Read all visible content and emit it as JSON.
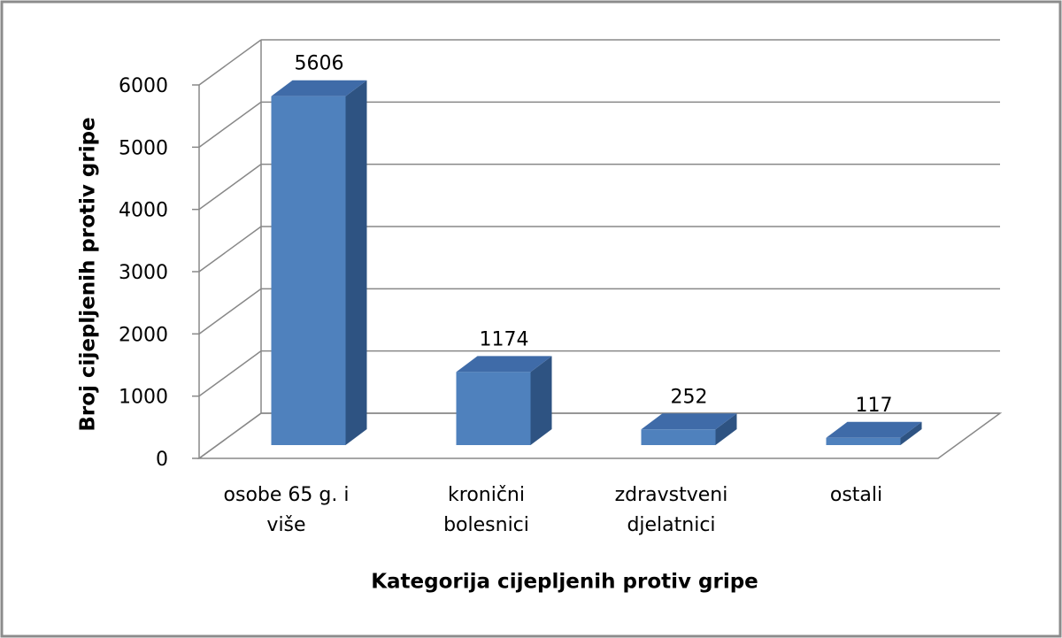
{
  "chart_data": {
    "type": "bar3d",
    "categories": [
      "osobe 65 g. i više",
      "kronični bolesnici",
      "zdravstveni djelatnici",
      "ostali"
    ],
    "values": [
      5606,
      1174,
      252,
      117
    ],
    "color": "#4f81bd",
    "ylim": [
      0,
      6000
    ],
    "yticks": [
      0,
      1000,
      2000,
      3000,
      4000,
      5000,
      6000
    ],
    "grid": true,
    "y_label": "Broj cijepljenih protiv gripe",
    "x_label": "Kategorija cijepljenih protiv gripe"
  }
}
